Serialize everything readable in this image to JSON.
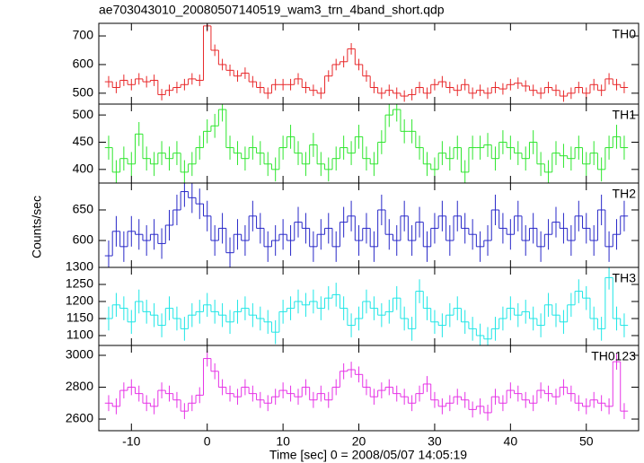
{
  "title": "ae703043010_20080507140519_wam3_trn_4band_short.qdp",
  "ylabel": "Counts/sec",
  "xlabel": "Time [sec] 0 = 2008/05/07 14:05:19",
  "chart_data": [
    {
      "type": "step",
      "label": "TH0",
      "color": "#e8282a",
      "error": 20,
      "x": [
        -13,
        -12,
        -11,
        -10,
        -9,
        -8,
        -7,
        -6,
        -5,
        -4,
        -3,
        -2,
        -1,
        0,
        1,
        2,
        3,
        4,
        5,
        6,
        7,
        8,
        9,
        10,
        11,
        12,
        13,
        14,
        15,
        16,
        17,
        18,
        19,
        20,
        21,
        22,
        23,
        24,
        25,
        26,
        27,
        28,
        29,
        30,
        31,
        32,
        33,
        34,
        35,
        36,
        37,
        38,
        39,
        40,
        41,
        42,
        43,
        44,
        45,
        46,
        47,
        48,
        49,
        50,
        51,
        52,
        53,
        54,
        55
      ],
      "values": [
        540,
        520,
        545,
        530,
        550,
        540,
        545,
        495,
        510,
        520,
        530,
        550,
        545,
        735,
        650,
        600,
        580,
        560,
        570,
        540,
        520,
        500,
        530,
        530,
        530,
        550,
        520,
        510,
        500,
        560,
        600,
        610,
        655,
        600,
        560,
        520,
        500,
        510,
        500,
        490,
        495,
        520,
        500,
        530,
        540,
        520,
        510,
        530,
        500,
        510,
        500,
        520,
        515,
        530,
        535,
        525,
        510,
        500,
        520,
        510,
        490,
        500,
        520,
        500,
        530,
        510,
        550,
        530,
        520
      ],
      "xlim": [
        -14.3,
        56.9
      ],
      "xticks": [
        -10,
        0,
        10,
        20,
        30,
        40,
        50
      ],
      "ylim": [
        462,
        744
      ],
      "yticks": [
        500,
        600,
        700
      ]
    },
    {
      "type": "step",
      "label": "TH1",
      "color": "#2ee62e",
      "error": 22,
      "x": [
        -13,
        -12,
        -11,
        -10,
        -9,
        -8,
        -7,
        -6,
        -5,
        -4,
        -3,
        -2,
        -1,
        0,
        1,
        2,
        3,
        4,
        5,
        6,
        7,
        8,
        9,
        10,
        11,
        12,
        13,
        14,
        15,
        16,
        17,
        18,
        19,
        20,
        21,
        22,
        23,
        24,
        25,
        26,
        27,
        28,
        29,
        30,
        31,
        32,
        33,
        34,
        35,
        36,
        37,
        38,
        39,
        40,
        41,
        42,
        43,
        44,
        45,
        46,
        47,
        48,
        49,
        50,
        51,
        52,
        53,
        54,
        55
      ],
      "values": [
        440,
        395,
        420,
        410,
        465,
        420,
        410,
        430,
        420,
        430,
        395,
        410,
        440,
        470,
        480,
        510,
        440,
        430,
        420,
        440,
        430,
        410,
        400,
        440,
        460,
        430,
        410,
        445,
        410,
        400,
        420,
        440,
        430,
        460,
        420,
        410,
        450,
        500,
        510,
        470,
        470,
        440,
        410,
        400,
        430,
        420,
        440,
        395,
        440,
        440,
        445,
        420,
        450,
        440,
        430,
        420,
        450,
        410,
        395,
        430,
        425,
        420,
        440,
        410,
        430,
        400,
        440,
        460,
        440
      ],
      "xlim": [
        -14.3,
        56.9
      ],
      "xticks": [
        -10,
        0,
        10,
        20,
        30,
        40,
        50
      ],
      "ylim": [
        375,
        520
      ],
      "yticks": [
        400,
        450,
        500
      ]
    },
    {
      "type": "step",
      "label": "TH2",
      "color": "#2828c8",
      "error": 25,
      "x": [
        -13,
        -12,
        -11,
        -10,
        -9,
        -8,
        -7,
        -6,
        -5,
        -4,
        -3,
        -2,
        -1,
        0,
        1,
        2,
        3,
        4,
        5,
        6,
        7,
        8,
        9,
        10,
        11,
        12,
        13,
        14,
        15,
        16,
        17,
        18,
        19,
        20,
        21,
        22,
        23,
        24,
        25,
        26,
        27,
        28,
        29,
        30,
        31,
        32,
        33,
        34,
        35,
        36,
        37,
        38,
        39,
        40,
        41,
        42,
        43,
        44,
        45,
        46,
        47,
        48,
        49,
        50,
        51,
        52,
        53,
        54,
        55
      ],
      "values": [
        575,
        615,
        590,
        615,
        610,
        600,
        610,
        595,
        625,
        650,
        680,
        670,
        660,
        640,
        600,
        620,
        580,
        610,
        600,
        640,
        620,
        590,
        600,
        610,
        600,
        630,
        620,
        590,
        610,
        620,
        590,
        630,
        640,
        600,
        620,
        590,
        650,
        610,
        600,
        640,
        600,
        630,
        590,
        620,
        640,
        600,
        640,
        620,
        610,
        590,
        600,
        650,
        620,
        610,
        640,
        600,
        620,
        590,
        610,
        630,
        620,
        600,
        640,
        620,
        600,
        650,
        590,
        610,
        640
      ],
      "xlim": [
        -14.3,
        56.9
      ],
      "xticks": [
        -10,
        0,
        10,
        20,
        30,
        40,
        50
      ],
      "ylim": [
        556,
        694
      ],
      "yticks": [
        600,
        650
      ]
    },
    {
      "type": "step",
      "label": "TH3",
      "color": "#1ee6e6",
      "error": 35,
      "x": [
        -13,
        -12,
        -11,
        -10,
        -9,
        -8,
        -7,
        -6,
        -5,
        -4,
        -3,
        -2,
        -1,
        0,
        1,
        2,
        3,
        4,
        5,
        6,
        7,
        8,
        9,
        10,
        11,
        12,
        13,
        14,
        15,
        16,
        17,
        18,
        19,
        20,
        21,
        22,
        23,
        24,
        25,
        26,
        27,
        28,
        29,
        30,
        31,
        32,
        33,
        34,
        35,
        36,
        37,
        38,
        39,
        40,
        41,
        42,
        43,
        44,
        45,
        46,
        47,
        48,
        49,
        50,
        51,
        52,
        53,
        54,
        55
      ],
      "values": [
        1150,
        1190,
        1180,
        1140,
        1200,
        1170,
        1160,
        1130,
        1180,
        1150,
        1120,
        1160,
        1170,
        1190,
        1170,
        1160,
        1140,
        1170,
        1180,
        1160,
        1150,
        1140,
        1110,
        1170,
        1180,
        1200,
        1190,
        1200,
        1180,
        1210,
        1220,
        1180,
        1130,
        1150,
        1200,
        1180,
        1160,
        1170,
        1210,
        1150,
        1120,
        1230,
        1180,
        1140,
        1130,
        1160,
        1180,
        1140,
        1120,
        1100,
        1090,
        1120,
        1150,
        1180,
        1160,
        1170,
        1150,
        1130,
        1190,
        1160,
        1140,
        1190,
        1230,
        1210,
        1150,
        1120,
        1270,
        1150,
        1130
      ],
      "xlim": [
        -14.3,
        56.9
      ],
      "xticks": [
        -10,
        0,
        10,
        20,
        30,
        40,
        50
      ],
      "ylim": [
        1071,
        1300
      ],
      "yticks": [
        1100,
        1150,
        1200,
        1250,
        1300
      ]
    },
    {
      "type": "step",
      "label": "TH0123",
      "color": "#e633e6",
      "error": 50,
      "x": [
        -13,
        -12,
        -11,
        -10,
        -9,
        -8,
        -7,
        -6,
        -5,
        -4,
        -3,
        -2,
        -1,
        0,
        1,
        2,
        3,
        4,
        5,
        6,
        7,
        8,
        9,
        10,
        11,
        12,
        13,
        14,
        15,
        16,
        17,
        18,
        19,
        20,
        21,
        22,
        23,
        24,
        25,
        26,
        27,
        28,
        29,
        30,
        31,
        32,
        33,
        34,
        35,
        36,
        37,
        38,
        39,
        40,
        41,
        42,
        43,
        44,
        45,
        46,
        47,
        48,
        49,
        50,
        51,
        52,
        53,
        54,
        55
      ],
      "values": [
        2700,
        2680,
        2780,
        2800,
        2760,
        2700,
        2680,
        2780,
        2760,
        2720,
        2650,
        2700,
        2750,
        2980,
        2900,
        2800,
        2760,
        2740,
        2800,
        2760,
        2720,
        2700,
        2740,
        2780,
        2760,
        2740,
        2800,
        2720,
        2760,
        2720,
        2800,
        2900,
        2910,
        2880,
        2800,
        2740,
        2780,
        2800,
        2760,
        2740,
        2700,
        2760,
        2820,
        2720,
        2680,
        2700,
        2740,
        2720,
        2660,
        2680,
        2640,
        2740,
        2700,
        2780,
        2760,
        2720,
        2700,
        2780,
        2760,
        2740,
        2800,
        2760,
        2700,
        2680,
        2720,
        2700,
        2680,
        2960,
        2650
      ],
      "xlim": [
        -14.3,
        56.9
      ],
      "xticks": [
        -10,
        0,
        10,
        20,
        30,
        40,
        50
      ],
      "ylim": [
        2527,
        3062
      ],
      "yticks": [
        2600,
        2800,
        3000
      ]
    }
  ]
}
